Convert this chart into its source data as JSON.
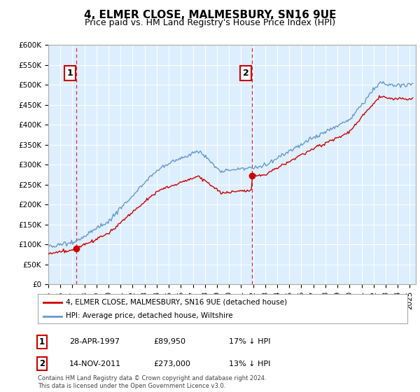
{
  "title": "4, ELMER CLOSE, MALMESBURY, SN16 9UE",
  "subtitle": "Price paid vs. HM Land Registry's House Price Index (HPI)",
  "ylim": [
    0,
    600000
  ],
  "yticks": [
    0,
    50000,
    100000,
    150000,
    200000,
    250000,
    300000,
    350000,
    400000,
    450000,
    500000,
    550000,
    600000
  ],
  "ytick_labels": [
    "£0",
    "£50K",
    "£100K",
    "£150K",
    "£200K",
    "£250K",
    "£300K",
    "£350K",
    "£400K",
    "£450K",
    "£500K",
    "£550K",
    "£600K"
  ],
  "xlim_start": 1995.0,
  "xlim_end": 2025.5,
  "purchase1_year": 1997.32,
  "purchase1_price": 89950,
  "purchase1_label": "1",
  "purchase1_date": "28-APR-1997",
  "purchase1_display": "£89,950",
  "purchase1_hpi": "17% ↓ HPI",
  "purchase2_year": 2011.88,
  "purchase2_price": 273000,
  "purchase2_label": "2",
  "purchase2_date": "14-NOV-2011",
  "purchase2_display": "£273,000",
  "purchase2_hpi": "13% ↓ HPI",
  "red_line_color": "#cc0000",
  "blue_line_color": "#6699cc",
  "plot_bg_color": "#ddeeff",
  "legend_line1": "4, ELMER CLOSE, MALMESBURY, SN16 9UE (detached house)",
  "legend_line2": "HPI: Average price, detached house, Wiltshire",
  "footnote": "Contains HM Land Registry data © Crown copyright and database right 2024.\nThis data is licensed under the Open Government Licence v3.0.",
  "title_fontsize": 11,
  "subtitle_fontsize": 9,
  "tick_fontsize": 7.5
}
